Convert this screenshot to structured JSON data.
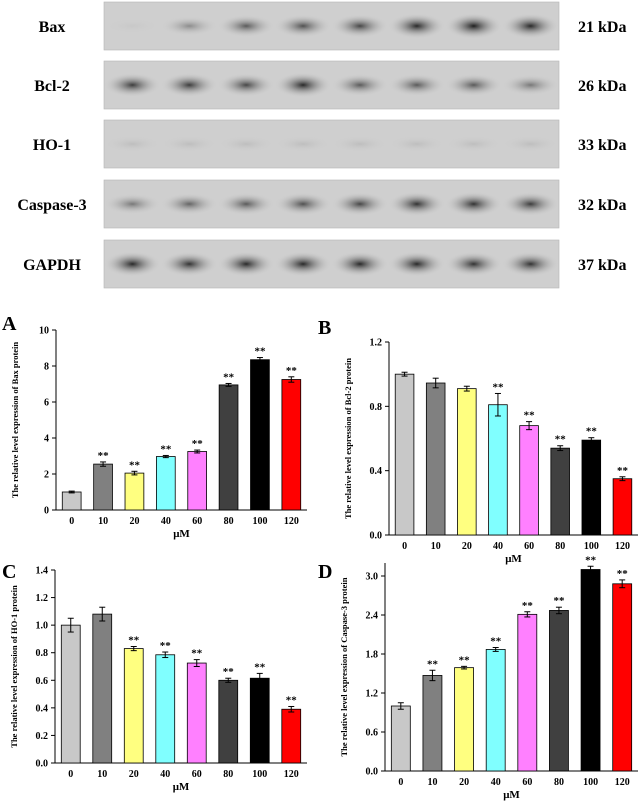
{
  "blot": {
    "lanes_count": 8,
    "rows": [
      {
        "name": "Bax",
        "size": "21 kDa",
        "intensities": [
          0.15,
          0.45,
          0.7,
          0.75,
          0.8,
          0.95,
          1.0,
          0.95
        ]
      },
      {
        "name": "Bcl-2",
        "size": "26 kDa",
        "intensities": [
          0.85,
          0.85,
          0.8,
          0.95,
          0.7,
          0.7,
          0.7,
          0.55
        ]
      },
      {
        "name": "HO-1",
        "size": "33 kDa",
        "intensities": [
          0.2,
          0.2,
          0.2,
          0.2,
          0.2,
          0.2,
          0.2,
          0.2
        ]
      },
      {
        "name": "Caspase-3",
        "size": "32 kDa",
        "intensities": [
          0.55,
          0.65,
          0.7,
          0.75,
          0.8,
          0.9,
          0.9,
          0.85
        ]
      },
      {
        "name": "GAPDH",
        "size": "37 kDa",
        "intensities": [
          0.95,
          0.9,
          0.95,
          0.95,
          0.95,
          0.95,
          0.9,
          0.9
        ]
      }
    ]
  },
  "colors": [
    "#c8c8c8",
    "#808080",
    "#ffff80",
    "#80ffff",
    "#ff80ff",
    "#404040",
    "#000000",
    "#ff0000"
  ],
  "chart_data": [
    {
      "type": "bar",
      "panel_label": "A",
      "categories": [
        "0",
        "10",
        "20",
        "40",
        "60",
        "80",
        "100",
        "120"
      ],
      "values": [
        1.0,
        2.55,
        2.05,
        2.97,
        3.25,
        6.95,
        8.35,
        7.25
      ],
      "errors": [
        0.05,
        0.12,
        0.1,
        0.06,
        0.08,
        0.08,
        0.12,
        0.15
      ],
      "annotations": [
        "",
        "**",
        "**",
        "**",
        "**",
        "**",
        "**",
        "**"
      ],
      "xlabel": "μM",
      "ylabel": "The relative level expression of Bax protein",
      "ylim": [
        0,
        10
      ],
      "yticks": [
        "0",
        "2",
        "4",
        "6",
        "8",
        "10"
      ]
    },
    {
      "type": "bar",
      "panel_label": "B",
      "categories": [
        "0",
        "10",
        "20",
        "40",
        "60",
        "80",
        "100",
        "120"
      ],
      "values": [
        1.0,
        0.945,
        0.91,
        0.81,
        0.68,
        0.54,
        0.59,
        0.35
      ],
      "errors": [
        0.012,
        0.03,
        0.015,
        0.07,
        0.025,
        0.015,
        0.015,
        0.012
      ],
      "annotations": [
        "",
        "",
        "",
        "**",
        "**",
        "**",
        "**",
        "**"
      ],
      "xlabel": "μM",
      "ylabel": "The relative level expression of Bcl-2 protein",
      "ylim": [
        0,
        1.2
      ],
      "yticks": [
        "0.0",
        "0.4",
        "0.8",
        "1.2"
      ]
    },
    {
      "type": "bar",
      "panel_label": "C",
      "categories": [
        "0",
        "10",
        "20",
        "40",
        "60",
        "80",
        "100",
        "120"
      ],
      "values": [
        1.0,
        1.08,
        0.83,
        0.785,
        0.725,
        0.6,
        0.615,
        0.39
      ],
      "errors": [
        0.05,
        0.05,
        0.015,
        0.02,
        0.025,
        0.015,
        0.035,
        0.02
      ],
      "annotations": [
        "",
        "",
        "**",
        "**",
        "**",
        "**",
        "**",
        "**"
      ],
      "xlabel": "μM",
      "ylabel": "The relative level expression of HO-1 protein",
      "ylim": [
        0,
        1.4
      ],
      "yticks": [
        "0.0",
        "0.2",
        "0.4",
        "0.6",
        "0.8",
        "1.0",
        "1.2",
        "1.4"
      ]
    },
    {
      "type": "bar",
      "panel_label": "D",
      "categories": [
        "0",
        "10",
        "20",
        "40",
        "60",
        "80",
        "100",
        "120"
      ],
      "values": [
        1.0,
        1.47,
        1.59,
        1.87,
        2.41,
        2.47,
        3.1,
        2.88
      ],
      "errors": [
        0.05,
        0.08,
        0.02,
        0.03,
        0.04,
        0.05,
        0.05,
        0.06
      ],
      "annotations": [
        "",
        "**",
        "**",
        "**",
        "**",
        "**",
        "**",
        "**"
      ],
      "xlabel": "μM",
      "ylabel": "The relative level expression of Caspase-3 protein",
      "ylim": [
        0,
        3.2
      ],
      "yticks": [
        "0.0",
        "0.6",
        "1.2",
        "1.8",
        "2.4",
        "3.0"
      ]
    }
  ]
}
